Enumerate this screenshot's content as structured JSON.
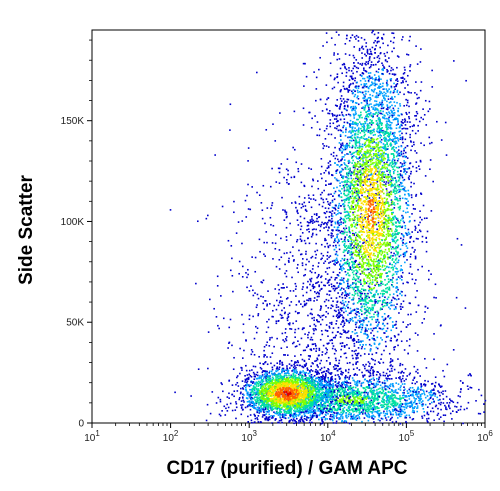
{
  "chart_data": {
    "type": "scatter",
    "subtype": "flow-cytometry density plot",
    "xlabel": "CD17 (purified) / GAM APC",
    "ylabel": "Side Scatter",
    "x_scale": "log",
    "xlim": [
      10,
      1000000
    ],
    "ylim": [
      0,
      195000
    ],
    "x_ticks": [
      {
        "value": 10,
        "base": "10",
        "exp": "1"
      },
      {
        "value": 100,
        "base": "10",
        "exp": "2"
      },
      {
        "value": 1000,
        "base": "10",
        "exp": "3"
      },
      {
        "value": 10000,
        "base": "10",
        "exp": "4"
      },
      {
        "value": 100000,
        "base": "10",
        "exp": "5"
      },
      {
        "value": 1000000,
        "base": "10",
        "exp": "6"
      }
    ],
    "y_ticks": [
      {
        "value": 0,
        "label": "0"
      },
      {
        "value": 50000,
        "label": "50K"
      },
      {
        "value": 100000,
        "label": "100K"
      },
      {
        "value": 150000,
        "label": "150K"
      }
    ],
    "density_colormap": [
      "#0000cc",
      "#00a0ff",
      "#00e0a0",
      "#80ff00",
      "#ffe000",
      "#ff6000",
      "#e00000"
    ],
    "populations": [
      {
        "x_center": 3000,
        "y_center": 15000,
        "x_spread_decades": 0.28,
        "y_spread": 6000,
        "relative_density": "highest"
      },
      {
        "x_center": 35000,
        "y_center": 105000,
        "x_spread_decades": 0.25,
        "y_spread": 35000,
        "relative_density": "high"
      },
      {
        "x_center": 20000,
        "y_center": 12000,
        "x_spread_decades": 0.6,
        "y_spread": 6000,
        "relative_density": "medium"
      }
    ],
    "grid": false,
    "legend": "none"
  }
}
